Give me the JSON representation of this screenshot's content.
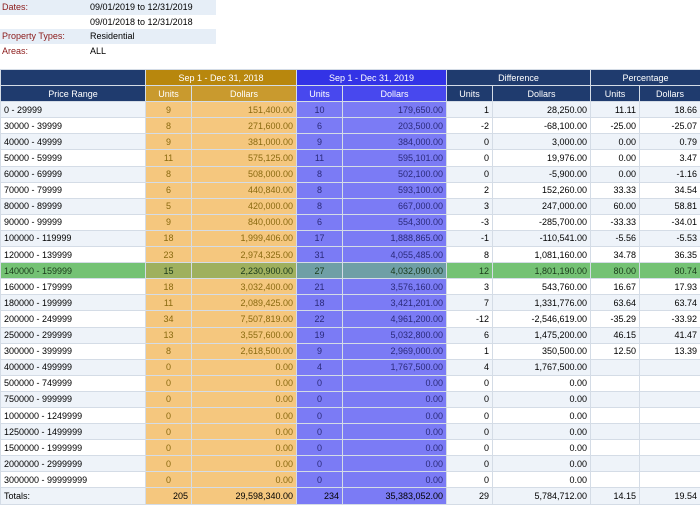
{
  "filters": {
    "dates_label": "Dates:",
    "dates_1": "09/01/2019 to 12/31/2019",
    "dates_2": "09/01/2018 to 12/31/2018",
    "property_types_label": "Property Types:",
    "property_types_value": "Residential",
    "areas_label": "Areas:",
    "areas_value": "ALL"
  },
  "table": {
    "group_headers": {
      "price_range": "",
      "period_2018": "Sep 1 - Dec 31, 2018",
      "period_2019": "Sep 1 - Dec 31, 2019",
      "difference": "Difference",
      "percentage": "Percentage"
    },
    "column_headers": {
      "price_range": "Price Range",
      "units_2018": "Units",
      "dollars_2018": "Dollars",
      "units_2019": "Units",
      "dollars_2019": "Dollars",
      "diff_units": "Units",
      "diff_dollars": "Dollars",
      "pct_units": "Units",
      "pct_dollars": "Dollars"
    },
    "highlighted_row_index": 10,
    "rows": [
      [
        "0 - 29999",
        "9",
        "151,400.00",
        "10",
        "179,650.00",
        "1",
        "28,250.00",
        "11.11",
        "18.66"
      ],
      [
        "30000 - 39999",
        "8",
        "271,600.00",
        "6",
        "203,500.00",
        "-2",
        "-68,100.00",
        "-25.00",
        "-25.07"
      ],
      [
        "40000 - 49999",
        "9",
        "381,000.00",
        "9",
        "384,000.00",
        "0",
        "3,000.00",
        "0.00",
        "0.79"
      ],
      [
        "50000 - 59999",
        "11",
        "575,125.00",
        "11",
        "595,101.00",
        "0",
        "19,976.00",
        "0.00",
        "3.47"
      ],
      [
        "60000 - 69999",
        "8",
        "508,000.00",
        "8",
        "502,100.00",
        "0",
        "-5,900.00",
        "0.00",
        "-1.16"
      ],
      [
        "70000 - 79999",
        "6",
        "440,840.00",
        "8",
        "593,100.00",
        "2",
        "152,260.00",
        "33.33",
        "34.54"
      ],
      [
        "80000 - 89999",
        "5",
        "420,000.00",
        "8",
        "667,000.00",
        "3",
        "247,000.00",
        "60.00",
        "58.81"
      ],
      [
        "90000 - 99999",
        "9",
        "840,000.00",
        "6",
        "554,300.00",
        "-3",
        "-285,700.00",
        "-33.33",
        "-34.01"
      ],
      [
        "100000 - 119999",
        "18",
        "1,999,406.00",
        "17",
        "1,888,865.00",
        "-1",
        "-110,541.00",
        "-5.56",
        "-5.53"
      ],
      [
        "120000 - 139999",
        "23",
        "2,974,325.00",
        "31",
        "4,055,485.00",
        "8",
        "1,081,160.00",
        "34.78",
        "36.35"
      ],
      [
        "140000 - 159999",
        "15",
        "2,230,900.00",
        "27",
        "4,032,090.00",
        "12",
        "1,801,190.00",
        "80.00",
        "80.74"
      ],
      [
        "160000 - 179999",
        "18",
        "3,032,400.00",
        "21",
        "3,576,160.00",
        "3",
        "543,760.00",
        "16.67",
        "17.93"
      ],
      [
        "180000 - 199999",
        "11",
        "2,089,425.00",
        "18",
        "3,421,201.00",
        "7",
        "1,331,776.00",
        "63.64",
        "63.74"
      ],
      [
        "200000 - 249999",
        "34",
        "7,507,819.00",
        "22",
        "4,961,200.00",
        "-12",
        "-2,546,619.00",
        "-35.29",
        "-33.92"
      ],
      [
        "250000 - 299999",
        "13",
        "3,557,600.00",
        "19",
        "5,032,800.00",
        "6",
        "1,475,200.00",
        "46.15",
        "41.47"
      ],
      [
        "300000 - 399999",
        "8",
        "2,618,500.00",
        "9",
        "2,969,000.00",
        "1",
        "350,500.00",
        "12.50",
        "13.39"
      ],
      [
        "400000 - 499999",
        "0",
        "0.00",
        "4",
        "1,767,500.00",
        "4",
        "1,767,500.00",
        "",
        ""
      ],
      [
        "500000 - 749999",
        "0",
        "0.00",
        "0",
        "0.00",
        "0",
        "0.00",
        "",
        ""
      ],
      [
        "750000 - 999999",
        "0",
        "0.00",
        "0",
        "0.00",
        "0",
        "0.00",
        "",
        ""
      ],
      [
        "1000000 - 1249999",
        "0",
        "0.00",
        "0",
        "0.00",
        "0",
        "0.00",
        "",
        ""
      ],
      [
        "1250000 - 1499999",
        "0",
        "0.00",
        "0",
        "0.00",
        "0",
        "0.00",
        "",
        ""
      ],
      [
        "1500000 - 1999999",
        "0",
        "0.00",
        "0",
        "0.00",
        "0",
        "0.00",
        "",
        ""
      ],
      [
        "2000000 - 2999999",
        "0",
        "0.00",
        "0",
        "0.00",
        "0",
        "0.00",
        "",
        ""
      ],
      [
        "3000000 - 99999999",
        "0",
        "0.00",
        "0",
        "0.00",
        "0",
        "0.00",
        "",
        ""
      ]
    ],
    "totals": [
      "Totals:",
      "205",
      "29,598,340.00",
      "234",
      "35,383,052.00",
      "29",
      "5,784,712.00",
      "14.15",
      "19.54"
    ]
  },
  "colors": {
    "header_navy": "#1f3b6e",
    "period_2018_gold": "#f5c77e",
    "period_2019_blue": "#7b7bf5",
    "highlight_green": "#74c274",
    "label_red": "#8b1a1a"
  }
}
